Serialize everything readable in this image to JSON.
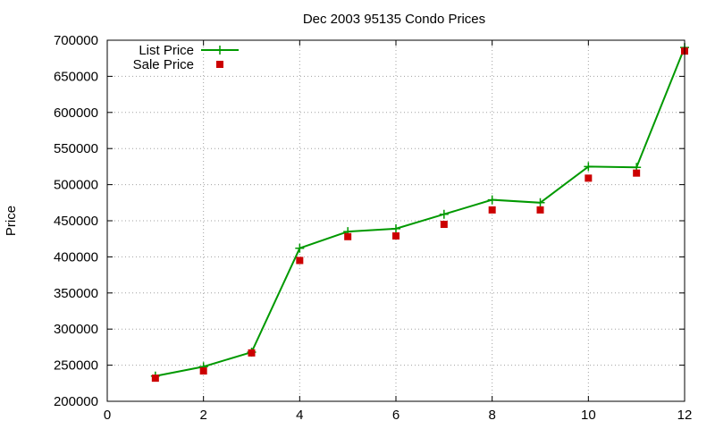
{
  "chart_data": {
    "type": "line",
    "title": "Dec 2003 95135 Condo Prices",
    "xlabel": "",
    "ylabel": "Price",
    "xlim": [
      0,
      12
    ],
    "ylim": [
      200000,
      700000
    ],
    "x_ticks": [
      0,
      2,
      4,
      6,
      8,
      10,
      12
    ],
    "y_ticks": [
      200000,
      250000,
      300000,
      350000,
      400000,
      450000,
      500000,
      550000,
      600000,
      650000,
      700000
    ],
    "grid": true,
    "legend_position": "top-left",
    "series": [
      {
        "name": "List Price",
        "style": "line+cross",
        "color": "#009900",
        "x": [
          1,
          2,
          3,
          4,
          5,
          6,
          7,
          8,
          9,
          10,
          11,
          12
        ],
        "values": [
          235000,
          248000,
          268000,
          412000,
          435000,
          439000,
          459000,
          479000,
          475000,
          525000,
          524000,
          690000
        ]
      },
      {
        "name": "Sale Price",
        "style": "square-marker",
        "color": "#cc0000",
        "x": [
          1,
          2,
          3,
          4,
          5,
          6,
          7,
          8,
          9,
          10,
          11,
          12
        ],
        "values": [
          232000,
          242000,
          267000,
          395000,
          428000,
          429000,
          445000,
          465000,
          465000,
          509000,
          516000,
          685000
        ]
      }
    ]
  }
}
